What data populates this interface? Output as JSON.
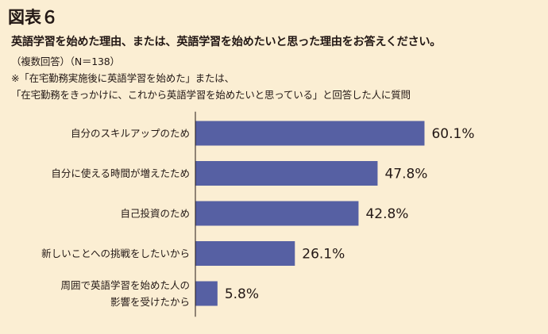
{
  "figure_label": "図表６",
  "question": "英語学習を始めた理由、または、英語学習を始めたいと思った理由をお答えください。",
  "note_answer": "（複数回答）（N＝138）",
  "note_target_1": "※「在宅勤務実施後に英語学習を始めた」または、",
  "note_target_2": "「在宅勤務をきっかけに、これから英語学習を始めたいと思っている」と回答した人に質問",
  "colors": {
    "bar": "#5660a3",
    "background": "#fbeed3",
    "axis": "#231815"
  },
  "chart_data": {
    "type": "bar",
    "orientation": "horizontal",
    "categories": [
      [
        "自分のスキルアップのため"
      ],
      [
        "自分に使える時間が増えたため"
      ],
      [
        "自己投資のため"
      ],
      [
        "新しいことへの挑戦をしたいから"
      ],
      [
        "周囲で英語学習を始めた人の",
        "影響を受けたから"
      ]
    ],
    "values": [
      60.1,
      47.8,
      42.8,
      26.1,
      5.8
    ],
    "value_labels": [
      "60.1%",
      "47.8%",
      "42.8%",
      "26.1%",
      "5.8%"
    ],
    "xlim": [
      0,
      100
    ],
    "grid": false,
    "legend": "none"
  }
}
